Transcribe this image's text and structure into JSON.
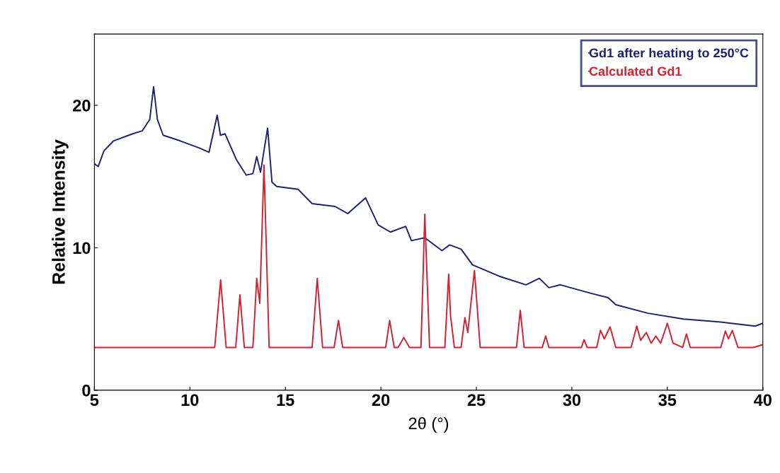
{
  "chart_data": {
    "type": "line",
    "xlabel": "2θ (°)",
    "ylabel": "Relative Intensity",
    "xlim": [
      5,
      40
    ],
    "ylim": [
      0,
      25
    ],
    "xticks": [
      5,
      10,
      15,
      20,
      25,
      30,
      35,
      40
    ],
    "yticks": [
      0,
      10,
      20
    ],
    "grid": false,
    "legend": "top right",
    "marker": "none",
    "line_style": "solid",
    "series": [
      {
        "name": "Gd1 after heating to 250°C",
        "color": "#1c2270",
        "x": [
          5.0,
          5.2,
          5.5,
          6.0,
          7.0,
          7.5,
          7.9,
          8.1,
          8.3,
          8.6,
          9.5,
          10.5,
          11.0,
          11.43,
          11.6,
          11.84,
          12.43,
          12.95,
          13.3,
          13.5,
          13.7,
          14.07,
          14.3,
          14.55,
          15.67,
          16.4,
          17.6,
          18.27,
          19.2,
          19.86,
          20.5,
          21.3,
          21.6,
          22.3,
          23.2,
          23.6,
          24.2,
          24.8,
          26.2,
          27.6,
          28.3,
          28.8,
          29.4,
          31.0,
          31.9,
          32.3,
          34.0,
          35.85,
          37.7,
          39.6,
          40.0
        ],
        "values": [
          15.9,
          15.7,
          16.8,
          17.5,
          18.0,
          18.2,
          19.0,
          21.3,
          19.0,
          17.9,
          17.5,
          17.0,
          16.7,
          19.3,
          17.9,
          18.0,
          16.2,
          15.1,
          15.2,
          16.4,
          15.3,
          18.4,
          14.6,
          14.3,
          14.1,
          13.1,
          12.9,
          12.4,
          13.5,
          11.6,
          11.1,
          11.5,
          10.5,
          10.7,
          9.8,
          10.2,
          9.9,
          8.8,
          8.0,
          7.4,
          7.85,
          7.2,
          7.4,
          6.8,
          6.5,
          6.0,
          5.4,
          5.0,
          4.8,
          4.5,
          4.7
        ]
      },
      {
        "name": "Calculated Gd1",
        "color": "#d42030",
        "x": [
          5.0,
          11.3,
          11.61,
          11.9,
          12.4,
          12.62,
          12.85,
          13.3,
          13.5,
          13.66,
          13.88,
          14.15,
          16.4,
          16.67,
          16.95,
          17.55,
          17.78,
          18.0,
          20.25,
          20.46,
          20.7,
          20.9,
          21.2,
          21.5,
          22.1,
          22.3,
          22.55,
          23.35,
          23.55,
          23.65,
          23.85,
          24.2,
          24.4,
          24.55,
          24.9,
          25.2,
          27.1,
          27.3,
          27.5,
          28.45,
          28.63,
          28.8,
          30.5,
          30.64,
          30.8,
          31.3,
          31.5,
          31.7,
          32.0,
          32.3,
          33.1,
          33.4,
          33.6,
          33.9,
          34.15,
          34.4,
          34.65,
          35.0,
          35.3,
          35.8,
          36.0,
          36.2,
          37.8,
          38.04,
          38.2,
          38.4,
          38.7,
          39.5,
          40.0
        ],
        "values": [
          3.0,
          3.0,
          7.75,
          3.0,
          3.0,
          6.7,
          3.0,
          3.0,
          7.85,
          6.1,
          15.8,
          3.0,
          3.0,
          7.85,
          3.0,
          3.0,
          4.9,
          3.0,
          3.0,
          4.9,
          3.0,
          3.0,
          3.7,
          3.0,
          3.0,
          12.35,
          3.0,
          3.0,
          8.15,
          5.2,
          3.0,
          3.0,
          5.1,
          4.05,
          8.4,
          3.0,
          3.0,
          5.6,
          3.0,
          3.0,
          3.8,
          3.0,
          3.0,
          3.55,
          3.0,
          3.0,
          4.2,
          3.6,
          4.45,
          3.0,
          3.0,
          4.5,
          3.5,
          4.05,
          3.3,
          3.8,
          3.3,
          4.7,
          3.3,
          3.0,
          3.95,
          3.0,
          3.0,
          4.15,
          3.6,
          4.2,
          3.0,
          3.0,
          3.2
        ]
      }
    ]
  }
}
